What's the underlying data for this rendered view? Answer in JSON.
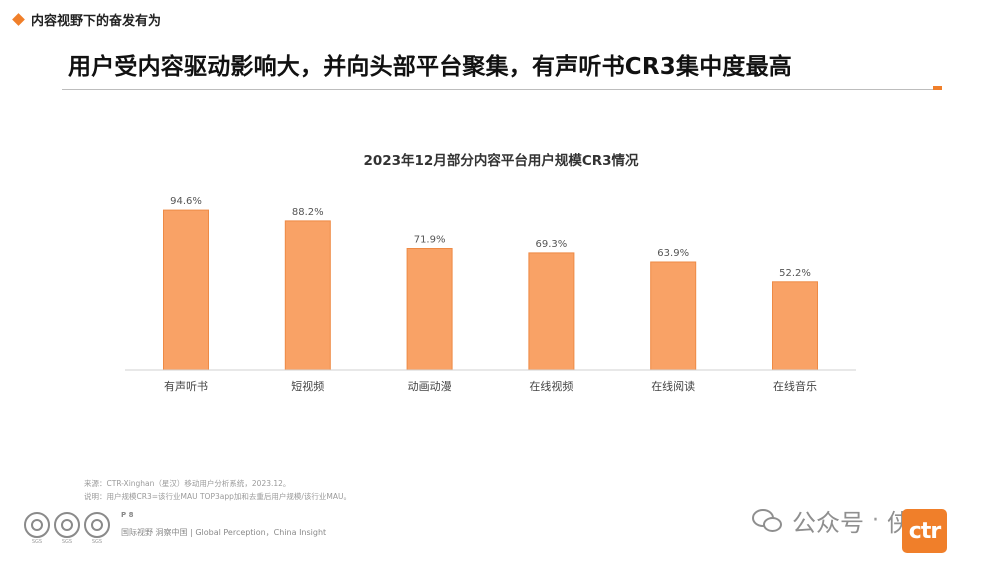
{
  "header": {
    "section_label": "内容视野下的奋发有为",
    "title": "用户受内容驱动影响大，并向头部平台聚集，有声听书CR3集中度最高"
  },
  "colors": {
    "accent": "#f07f2a",
    "bar": "#f9a266",
    "bar_stroke": "#ee8a45"
  },
  "chart_data": {
    "type": "bar",
    "title": "2023年12月部分内容平台用户规模CR3情况",
    "categories": [
      "有声听书",
      "短视频",
      "动画动漫",
      "在线视频",
      "在线阅读",
      "在线音乐"
    ],
    "values": [
      94.6,
      88.2,
      71.9,
      69.3,
      63.9,
      52.2
    ],
    "value_labels": [
      "94.6%",
      "88.2%",
      "71.9%",
      "69.3%",
      "63.9%",
      "52.2%"
    ],
    "xlabel": "",
    "ylabel": "",
    "ylim": [
      0,
      100
    ],
    "grid": false,
    "legend": "none"
  },
  "footer": {
    "source": "来源：CTR-Xinghan（星汉）移动用户分析系统，2023.12。",
    "note": "说明：用户规模CR3=该行业MAU TOP3app加和去重后用户规模/该行业MAU。",
    "page": "P 8",
    "slogan": "国际视野 洞察中国 | Global Perception，China Insight",
    "seal_captions": [
      "SGS",
      "SGS",
      "SGS"
    ]
  },
  "watermark": {
    "text": "公众号",
    "sep": "·",
    "name": "侠说",
    "icon": "wechat-icon"
  },
  "logo": {
    "text": "ctr"
  }
}
